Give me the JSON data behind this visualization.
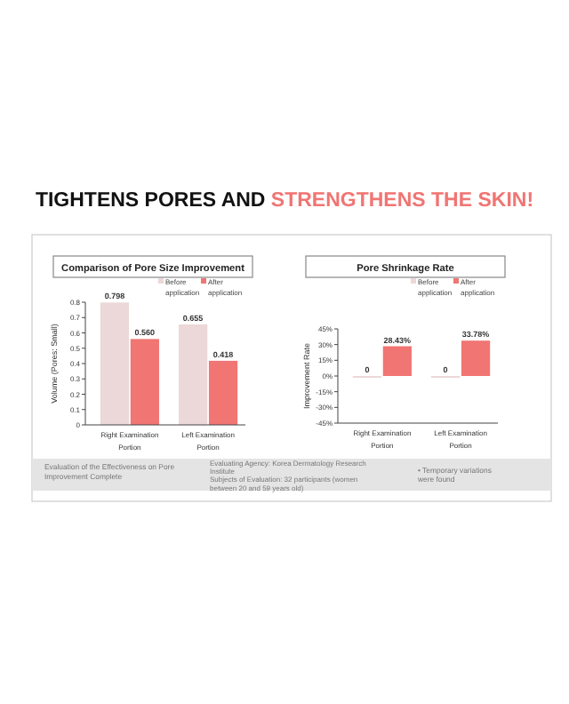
{
  "chart_data": [
    {
      "type": "bar",
      "title": "Comparison of Pore Size Improvement",
      "ylabel": "Volume (Pores: Small)",
      "categories": [
        "Right Examination Portion",
        "Left Examination Portion"
      ],
      "series": [
        {
          "name": "Before application",
          "color": "#ecd8d8",
          "values": [
            0.798,
            0.655
          ],
          "value_labels": [
            "0.798",
            "0.655"
          ]
        },
        {
          "name": "After application",
          "color": "#f07573",
          "values": [
            0.56,
            0.418
          ],
          "value_labels": [
            "0.560",
            "0.418"
          ]
        }
      ],
      "ylim": [
        0,
        0.8
      ],
      "yticks": [
        0,
        0.1,
        0.2,
        0.3,
        0.4,
        0.5,
        0.6,
        0.7,
        0.8
      ],
      "legend": "top right",
      "annotations": [
        "TIGHTENS PORES AND",
        "STRENGTHENS THE SKIN!",
        "Evaluation of the Effectiveness on Pore Improvement Complete",
        "Evaluating Agency: Korea Dermatology Research Institute",
        "Subjects of Evaluation: 32 participants (women between 20 and 59 years old)"
      ]
    },
    {
      "type": "bar",
      "title": "Pore Shrinkage Rate",
      "ylabel": "Improvement Rate",
      "categories": [
        "Right Examination Portion",
        "Left Examination Portion"
      ],
      "series": [
        {
          "name": "Before application",
          "color": "#ecd8d8",
          "values": [
            0,
            0
          ],
          "value_labels": [
            "0",
            "0"
          ]
        },
        {
          "name": "After application",
          "color": "#f07573",
          "values": [
            28.43,
            33.78
          ],
          "value_labels": [
            "28.43%",
            "33.78%"
          ]
        }
      ],
      "ylim": [
        -45,
        45
      ],
      "yticks": [
        {
          "value": -45,
          "label": "-45%"
        },
        {
          "value": -30,
          "label": "-30%"
        },
        {
          "value": -15,
          "label": "-15%"
        },
        {
          "value": 0,
          "label": "0%"
        },
        {
          "value": 15,
          "label": "15%"
        },
        {
          "value": 30,
          "label": "30%"
        },
        {
          "value": 45,
          "label": "45%"
        }
      ],
      "legend": "top right",
      "annotations": [
        "• Temporary variations were found"
      ]
    }
  ]
}
